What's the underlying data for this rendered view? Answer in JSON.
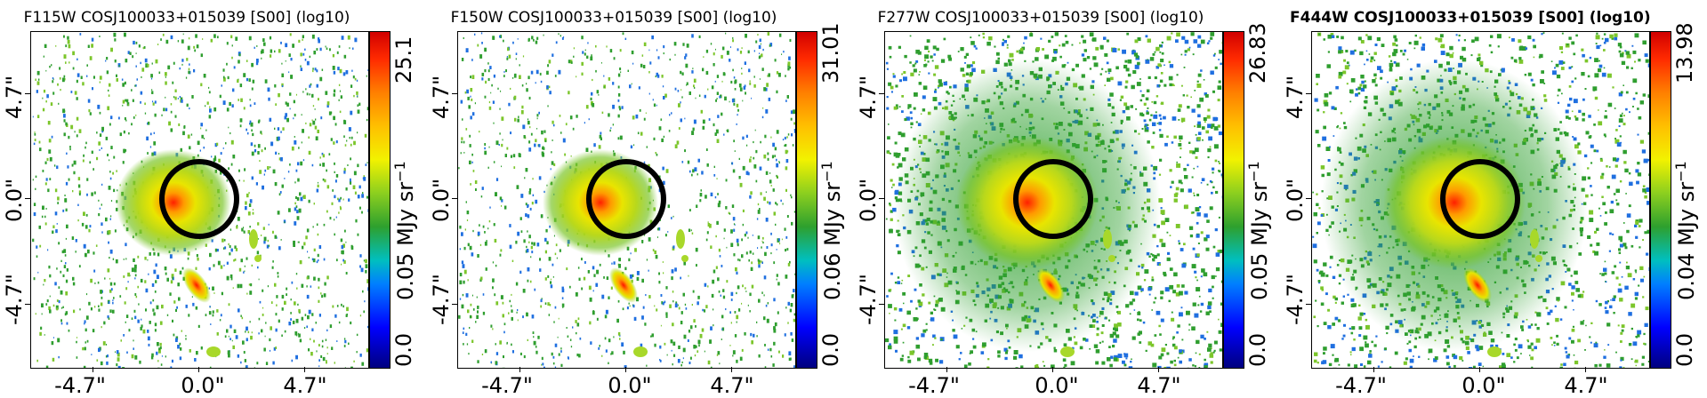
{
  "panels": [
    {
      "title": "F115W COSJ100033+015039 [S00] (log10)",
      "bold": false,
      "cbar_max": "25.1",
      "cbar_min": "0.0",
      "cbar_mid": "0.05",
      "cbar_unit_text": "MJy sr",
      "cbar_unit_exp": "−1",
      "xticks": [
        "-4.7\"",
        "0.0\"",
        "4.7\""
      ],
      "yticks": [
        "4.7\"",
        "0.0\"",
        "-4.7\""
      ],
      "noise_density": 0.55,
      "glow": "narrow"
    },
    {
      "title": "F150W COSJ100033+015039 [S00] (log10)",
      "bold": false,
      "cbar_max": "31.01",
      "cbar_min": "0.0",
      "cbar_mid": "0.06",
      "cbar_unit_text": "MJy sr",
      "cbar_unit_exp": "−1",
      "xticks": [
        "-4.7\"",
        "0.0\"",
        "4.7\""
      ],
      "yticks": [
        "4.7\"",
        "0.0\"",
        "-4.7\""
      ],
      "noise_density": 0.5,
      "glow": "narrow"
    },
    {
      "title": "F277W COSJ100033+015039 [S00] (log10)",
      "bold": false,
      "cbar_max": "26.83",
      "cbar_min": "0.0",
      "cbar_mid": "0.05",
      "cbar_unit_text": "MJy sr",
      "cbar_unit_exp": "−1",
      "xticks": [
        "-4.7\"",
        "0.0\"",
        "4.7\""
      ],
      "yticks": [
        "4.7\"",
        "0.0\"",
        "-4.7\""
      ],
      "noise_density": 0.5,
      "glow": "wide"
    },
    {
      "title": "F444W COSJ100033+015039 [S00] (log10)",
      "bold": true,
      "cbar_max": "13.98",
      "cbar_min": "0.0",
      "cbar_mid": "0.04",
      "cbar_unit_text": "MJy sr",
      "cbar_unit_exp": "−1",
      "xticks": [
        "-4.7\"",
        "0.0\"",
        "4.7\""
      ],
      "yticks": [
        "4.7\"",
        "0.0\"",
        "-4.7\""
      ],
      "noise_density": 0.45,
      "glow": "wide"
    }
  ]
}
